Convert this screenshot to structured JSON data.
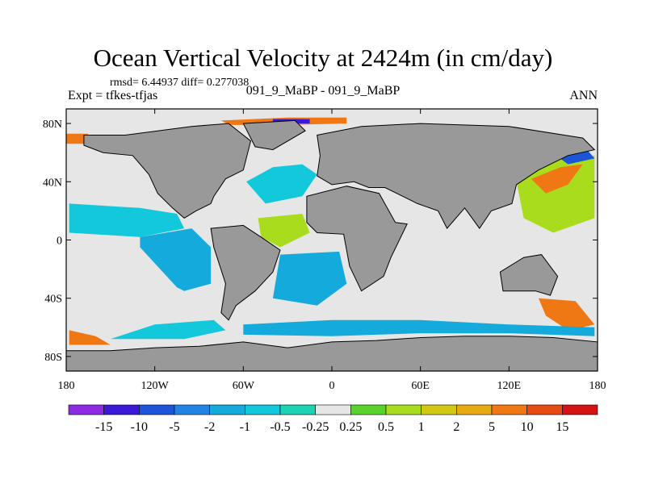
{
  "title": "Ocean Vertical Velocity at 2424m (in cm/day)",
  "stats_text": "rmsd= 6.44937  diff= 0.277038",
  "left_label": "Expt = tfkes-tfjas",
  "center_label": "091_9_MaBP - 091_9_MaBP",
  "right_label": "ANN",
  "colors": {
    "land": "#999999",
    "coastline": "#000000",
    "ocean_neutral": "#e6e6e6"
  },
  "map": {
    "projection": "cylindrical-equidistant",
    "lon_range": [
      -180,
      180
    ],
    "lat_range": [
      -90,
      90
    ],
    "x_ticks": [
      {
        "value": -180,
        "label": "180"
      },
      {
        "value": -120,
        "label": "120W"
      },
      {
        "value": -60,
        "label": "60W"
      },
      {
        "value": 0,
        "label": "0"
      },
      {
        "value": 60,
        "label": "60E"
      },
      {
        "value": 120,
        "label": "120E"
      },
      {
        "value": 180,
        "label": "180"
      }
    ],
    "y_ticks": [
      {
        "value": 80,
        "label": "80N"
      },
      {
        "value": 40,
        "label": "40N"
      },
      {
        "value": 0,
        "label": "0"
      },
      {
        "value": -40,
        "label": "40S"
      },
      {
        "value": -80,
        "label": "80S"
      }
    ],
    "land_regions": [
      {
        "name": "north-america",
        "points": [
          [
            -168,
            72
          ],
          [
            -140,
            72
          ],
          [
            -95,
            78
          ],
          [
            -70,
            80
          ],
          [
            -55,
            68
          ],
          [
            -60,
            48
          ],
          [
            -72,
            42
          ],
          [
            -80,
            30
          ],
          [
            -82,
            25
          ],
          [
            -92,
            20
          ],
          [
            -100,
            15
          ],
          [
            -108,
            22
          ],
          [
            -118,
            32
          ],
          [
            -124,
            45
          ],
          [
            -135,
            58
          ],
          [
            -155,
            60
          ],
          [
            -168,
            65
          ]
        ]
      },
      {
        "name": "greenland",
        "points": [
          [
            -60,
            80
          ],
          [
            -25,
            82
          ],
          [
            -18,
            75
          ],
          [
            -40,
            62
          ],
          [
            -52,
            64
          ]
        ]
      },
      {
        "name": "south-america",
        "points": [
          [
            -82,
            8
          ],
          [
            -60,
            10
          ],
          [
            -48,
            2
          ],
          [
            -35,
            -7
          ],
          [
            -40,
            -22
          ],
          [
            -52,
            -35
          ],
          [
            -65,
            -45
          ],
          [
            -70,
            -55
          ],
          [
            -75,
            -50
          ],
          [
            -72,
            -30
          ],
          [
            -80,
            -5
          ]
        ]
      },
      {
        "name": "eurasia",
        "points": [
          [
            -10,
            72
          ],
          [
            20,
            78
          ],
          [
            60,
            80
          ],
          [
            120,
            78
          ],
          [
            170,
            70
          ],
          [
            178,
            62
          ],
          [
            160,
            58
          ],
          [
            140,
            48
          ],
          [
            125,
            38
          ],
          [
            122,
            25
          ],
          [
            108,
            20
          ],
          [
            100,
            8
          ],
          [
            90,
            22
          ],
          [
            78,
            8
          ],
          [
            72,
            20
          ],
          [
            58,
            25
          ],
          [
            48,
            30
          ],
          [
            36,
            36
          ],
          [
            25,
            36
          ],
          [
            15,
            40
          ],
          [
            0,
            38
          ],
          [
            -10,
            44
          ],
          [
            -8,
            58
          ]
        ]
      },
      {
        "name": "africa",
        "points": [
          [
            -17,
            30
          ],
          [
            10,
            37
          ],
          [
            32,
            32
          ],
          [
            43,
            12
          ],
          [
            51,
            11
          ],
          [
            40,
            -12
          ],
          [
            35,
            -25
          ],
          [
            20,
            -35
          ],
          [
            12,
            -18
          ],
          [
            8,
            4
          ],
          [
            -10,
            5
          ],
          [
            -17,
            12
          ]
        ]
      },
      {
        "name": "australia",
        "points": [
          [
            114,
            -22
          ],
          [
            130,
            -12
          ],
          [
            142,
            -10
          ],
          [
            153,
            -25
          ],
          [
            148,
            -38
          ],
          [
            138,
            -35
          ],
          [
            116,
            -35
          ]
        ]
      },
      {
        "name": "antarctica",
        "points": [
          [
            -180,
            -90
          ],
          [
            180,
            -90
          ],
          [
            180,
            -70
          ],
          [
            150,
            -67
          ],
          [
            120,
            -66
          ],
          [
            90,
            -66
          ],
          [
            60,
            -67
          ],
          [
            30,
            -69
          ],
          [
            0,
            -70
          ],
          [
            -30,
            -74
          ],
          [
            -60,
            -70
          ],
          [
            -90,
            -73
          ],
          [
            -120,
            -74
          ],
          [
            -150,
            -76
          ],
          [
            -180,
            -76
          ]
        ]
      }
    ],
    "field_regions": [
      {
        "name": "n-pacific-band",
        "color_index": 7,
        "points": [
          [
            -178,
            45
          ],
          [
            -140,
            50
          ],
          [
            -122,
            45
          ],
          [
            -118,
            34
          ],
          [
            -135,
            25
          ],
          [
            -160,
            28
          ],
          [
            -178,
            32
          ]
        ]
      },
      {
        "name": "central-pacific-band",
        "color_index": 5,
        "points": [
          [
            -178,
            25
          ],
          [
            -130,
            22
          ],
          [
            -105,
            18
          ],
          [
            -100,
            8
          ],
          [
            -130,
            2
          ],
          [
            -178,
            5
          ]
        ]
      },
      {
        "name": "e-pacific",
        "color_index": 4,
        "points": [
          [
            -130,
            2
          ],
          [
            -95,
            8
          ],
          [
            -82,
            -5
          ],
          [
            -82,
            -30
          ],
          [
            -100,
            -35
          ],
          [
            -130,
            -20
          ]
        ]
      },
      {
        "name": "s-pacific",
        "color_index": 7,
        "points": [
          [
            -178,
            -5
          ],
          [
            -130,
            -5
          ],
          [
            -100,
            -38
          ],
          [
            -120,
            -58
          ],
          [
            -178,
            -60
          ]
        ]
      },
      {
        "name": "s-pacific-cyan",
        "color_index": 5,
        "points": [
          [
            -120,
            -58
          ],
          [
            -80,
            -55
          ],
          [
            -72,
            -62
          ],
          [
            -100,
            -68
          ],
          [
            -150,
            -68
          ]
        ]
      },
      {
        "name": "n-atlantic",
        "color_index": 5,
        "points": [
          [
            -58,
            40
          ],
          [
            -40,
            50
          ],
          [
            -20,
            52
          ],
          [
            -10,
            45
          ],
          [
            -20,
            30
          ],
          [
            -45,
            25
          ]
        ]
      },
      {
        "name": "equatorial-atlantic",
        "color_index": 9,
        "points": [
          [
            -50,
            15
          ],
          [
            -20,
            18
          ],
          [
            -15,
            5
          ],
          [
            -35,
            -5
          ],
          [
            -48,
            2
          ]
        ]
      },
      {
        "name": "s-atlantic",
        "color_index": 4,
        "points": [
          [
            -35,
            -10
          ],
          [
            5,
            -8
          ],
          [
            10,
            -30
          ],
          [
            -10,
            -45
          ],
          [
            -40,
            -40
          ]
        ]
      },
      {
        "name": "indian-ocean",
        "color_index": 7,
        "points": [
          [
            50,
            5
          ],
          [
            95,
            5
          ],
          [
            110,
            -10
          ],
          [
            105,
            -40
          ],
          [
            60,
            -45
          ],
          [
            40,
            -30
          ],
          [
            45,
            -10
          ]
        ]
      },
      {
        "name": "w-pacific",
        "color_index": 9,
        "points": [
          [
            125,
            40
          ],
          [
            150,
            55
          ],
          [
            178,
            58
          ],
          [
            178,
            15
          ],
          [
            150,
            5
          ],
          [
            130,
            15
          ]
        ]
      },
      {
        "name": "w-pacific-warm",
        "color_index": 12,
        "points": [
          [
            135,
            42
          ],
          [
            155,
            50
          ],
          [
            170,
            52
          ],
          [
            160,
            38
          ],
          [
            145,
            32
          ]
        ]
      },
      {
        "name": "sw-pacific",
        "color_index": 12,
        "points": [
          [
            140,
            -40
          ],
          [
            165,
            -42
          ],
          [
            178,
            -58
          ],
          [
            160,
            -62
          ],
          [
            145,
            -52
          ]
        ]
      },
      {
        "name": "southern-ocean-band",
        "color_index": 4,
        "points": [
          [
            -60,
            -58
          ],
          [
            0,
            -55
          ],
          [
            60,
            -55
          ],
          [
            120,
            -58
          ],
          [
            178,
            -60
          ],
          [
            178,
            -66
          ],
          [
            120,
            -64
          ],
          [
            60,
            -64
          ],
          [
            0,
            -66
          ],
          [
            -60,
            -65
          ]
        ]
      },
      {
        "name": "arctic-warm",
        "color_index": 12,
        "points": [
          [
            -75,
            82
          ],
          [
            -30,
            84
          ],
          [
            10,
            84
          ],
          [
            10,
            80
          ],
          [
            -30,
            79
          ],
          [
            -70,
            79
          ]
        ]
      },
      {
        "name": "arctic-cold",
        "color_index": 1,
        "points": [
          [
            -40,
            83
          ],
          [
            -15,
            83
          ],
          [
            -15,
            80
          ],
          [
            -40,
            80
          ]
        ]
      },
      {
        "name": "bering-warm",
        "color_index": 12,
        "points": [
          [
            -180,
            73
          ],
          [
            -165,
            73
          ],
          [
            -168,
            66
          ],
          [
            -180,
            66
          ]
        ]
      },
      {
        "name": "ne-pacific-cold",
        "color_index": 2,
        "points": [
          [
            152,
            58
          ],
          [
            172,
            63
          ],
          [
            178,
            56
          ],
          [
            160,
            52
          ]
        ]
      },
      {
        "name": "sw-corner-warm",
        "color_index": 12,
        "points": [
          [
            -178,
            -62
          ],
          [
            -160,
            -66
          ],
          [
            -150,
            -72
          ],
          [
            -178,
            -72
          ]
        ]
      }
    ]
  },
  "colorbar": {
    "colors": [
      "#8c2be2",
      "#3c19d6",
      "#1c55d8",
      "#2283e6",
      "#14aadc",
      "#14c8dc",
      "#1ed2b4",
      "#e6e6e6",
      "#5ad22c",
      "#aadc1e",
      "#d2c814",
      "#e6aa12",
      "#f07814",
      "#e64b14",
      "#d21414"
    ],
    "labels": [
      "-15",
      "-10",
      "-5",
      "-2",
      "-1",
      "-0.5",
      "-0.25",
      "0.25",
      "0.5",
      "1",
      "2",
      "5",
      "10",
      "15"
    ]
  }
}
